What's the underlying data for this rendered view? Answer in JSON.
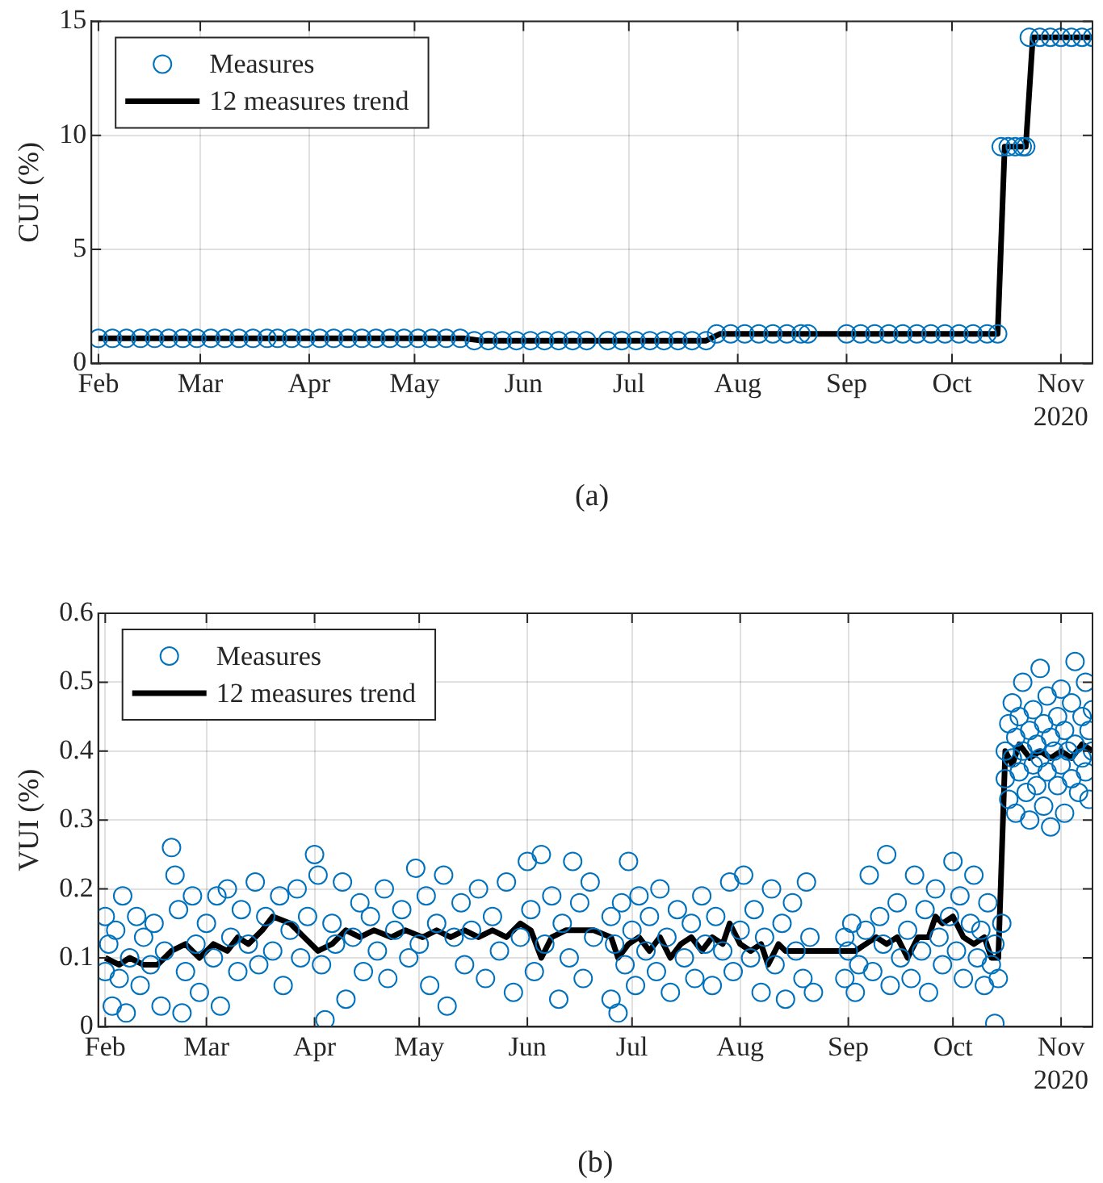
{
  "chart_data": [
    {
      "type": "scatter",
      "ylabel": "CUI (%)",
      "xlim": [
        "2020-01-30",
        "2020-11-10"
      ],
      "xticks": [
        {
          "value": "2020-02-01",
          "label": "Feb"
        },
        {
          "value": "2020-03-01",
          "label": "Mar"
        },
        {
          "value": "2020-04-01",
          "label": "Apr"
        },
        {
          "value": "2020-05-01",
          "label": "May"
        },
        {
          "value": "2020-06-01",
          "label": "Jun"
        },
        {
          "value": "2020-07-01",
          "label": "Jul"
        },
        {
          "value": "2020-08-01",
          "label": "Aug"
        },
        {
          "value": "2020-09-01",
          "label": "Sep"
        },
        {
          "value": "2020-10-01",
          "label": "Oct"
        },
        {
          "value": "2020-11-01",
          "label": "Nov\n2020"
        }
      ],
      "ylim": [
        0,
        15
      ],
      "yticks": [
        0,
        5,
        10,
        15
      ],
      "grid": true,
      "legend": "top left",
      "annotations": [
        "(a)"
      ],
      "series": [
        {
          "name": "Measures",
          "type": "scatter",
          "marker": "circle",
          "color": "#0072bd",
          "x": [
            "2020-02-01",
            "2020-02-05",
            "2020-02-09",
            "2020-02-13",
            "2020-02-17",
            "2020-02-21",
            "2020-02-25",
            "2020-02-29",
            "2020-03-04",
            "2020-03-08",
            "2020-03-12",
            "2020-03-16",
            "2020-03-20",
            "2020-03-23",
            "2020-03-27",
            "2020-03-31",
            "2020-04-04",
            "2020-04-08",
            "2020-04-12",
            "2020-04-16",
            "2020-04-20",
            "2020-04-24",
            "2020-04-28",
            "2020-05-02",
            "2020-05-06",
            "2020-05-10",
            "2020-05-14",
            "2020-05-18",
            "2020-05-22",
            "2020-05-26",
            "2020-05-30",
            "2020-06-03",
            "2020-06-07",
            "2020-06-11",
            "2020-06-15",
            "2020-06-19",
            "2020-06-25",
            "2020-06-29",
            "2020-07-03",
            "2020-07-07",
            "2020-07-11",
            "2020-07-15",
            "2020-07-19",
            "2020-07-23",
            "2020-07-26",
            "2020-07-30",
            "2020-08-03",
            "2020-08-07",
            "2020-08-11",
            "2020-08-15",
            "2020-08-19",
            "2020-08-21",
            "2020-09-01",
            "2020-09-05",
            "2020-09-09",
            "2020-09-13",
            "2020-09-17",
            "2020-09-21",
            "2020-09-25",
            "2020-09-29",
            "2020-10-03",
            "2020-10-07",
            "2020-10-11",
            "2020-10-14",
            "2020-10-15",
            "2020-10-17",
            "2020-10-19",
            "2020-10-21",
            "2020-10-22",
            "2020-10-23",
            "2020-10-26",
            "2020-10-29",
            "2020-11-01",
            "2020-11-04",
            "2020-11-07",
            "2020-11-10"
          ],
          "values": [
            1.1,
            1.1,
            1.1,
            1.1,
            1.1,
            1.1,
            1.1,
            1.1,
            1.1,
            1.1,
            1.1,
            1.1,
            1.1,
            1.1,
            1.1,
            1.1,
            1.1,
            1.1,
            1.1,
            1.1,
            1.1,
            1.1,
            1.1,
            1.1,
            1.1,
            1.1,
            1.1,
            1.0,
            1.0,
            1.0,
            1.0,
            1.0,
            1.0,
            1.0,
            1.0,
            1.0,
            1.0,
            1.0,
            1.0,
            1.0,
            1.0,
            1.0,
            1.0,
            1.0,
            1.3,
            1.3,
            1.3,
            1.3,
            1.3,
            1.3,
            1.3,
            1.3,
            1.3,
            1.3,
            1.3,
            1.3,
            1.3,
            1.3,
            1.3,
            1.3,
            1.3,
            1.3,
            1.3,
            1.3,
            9.5,
            9.5,
            9.5,
            9.5,
            9.5,
            14.3,
            14.3,
            14.3,
            14.3,
            14.3,
            14.3,
            14.3
          ]
        },
        {
          "name": "12 measures trend",
          "type": "line",
          "marker": "none",
          "color": "#000000",
          "x": [
            "2020-02-01",
            "2020-05-15",
            "2020-05-20",
            "2020-07-23",
            "2020-07-27",
            "2020-10-14",
            "2020-10-16",
            "2020-10-22",
            "2020-10-24",
            "2020-11-10"
          ],
          "values": [
            1.1,
            1.1,
            1.0,
            1.0,
            1.3,
            1.3,
            9.5,
            9.5,
            14.3,
            14.3
          ]
        }
      ]
    },
    {
      "type": "scatter",
      "ylabel": "VUI (%)",
      "xlim": [
        "2020-01-30",
        "2020-11-10"
      ],
      "xticks": [
        {
          "value": "2020-02-01",
          "label": "Feb"
        },
        {
          "value": "2020-03-01",
          "label": "Mar"
        },
        {
          "value": "2020-04-01",
          "label": "Apr"
        },
        {
          "value": "2020-05-01",
          "label": "May"
        },
        {
          "value": "2020-06-01",
          "label": "Jun"
        },
        {
          "value": "2020-07-01",
          "label": "Jul"
        },
        {
          "value": "2020-08-01",
          "label": "Aug"
        },
        {
          "value": "2020-09-01",
          "label": "Sep"
        },
        {
          "value": "2020-10-01",
          "label": "Oct"
        },
        {
          "value": "2020-11-01",
          "label": "Nov\n2020"
        }
      ],
      "ylim": [
        0,
        0.6
      ],
      "yticks": [
        0,
        0.1,
        0.2,
        0.3,
        0.4,
        0.5,
        0.6
      ],
      "grid": true,
      "legend": "top left",
      "annotations": [
        "(b)"
      ],
      "series": [
        {
          "name": "Measures",
          "type": "scatter",
          "marker": "circle",
          "color": "#0072bd",
          "x": [
            "2020-02-01",
            "2020-02-01",
            "2020-02-02",
            "2020-02-03",
            "2020-02-04",
            "2020-02-05",
            "2020-02-06",
            "2020-02-07",
            "2020-02-08",
            "2020-02-10",
            "2020-02-11",
            "2020-02-12",
            "2020-02-14",
            "2020-02-15",
            "2020-02-17",
            "2020-02-18",
            "2020-02-20",
            "2020-02-21",
            "2020-02-22",
            "2020-02-23",
            "2020-02-24",
            "2020-02-26",
            "2020-02-27",
            "2020-02-28",
            "2020-03-01",
            "2020-03-03",
            "2020-03-04",
            "2020-03-05",
            "2020-03-07",
            "2020-03-08",
            "2020-03-10",
            "2020-03-11",
            "2020-03-13",
            "2020-03-15",
            "2020-03-16",
            "2020-03-18",
            "2020-03-20",
            "2020-03-22",
            "2020-03-23",
            "2020-03-25",
            "2020-03-27",
            "2020-03-28",
            "2020-03-30",
            "2020-04-01",
            "2020-04-02",
            "2020-04-03",
            "2020-04-04",
            "2020-04-06",
            "2020-04-07",
            "2020-04-09",
            "2020-04-10",
            "2020-04-12",
            "2020-04-14",
            "2020-04-15",
            "2020-04-17",
            "2020-04-19",
            "2020-04-21",
            "2020-04-22",
            "2020-04-24",
            "2020-04-26",
            "2020-04-28",
            "2020-04-30",
            "2020-05-01",
            "2020-05-03",
            "2020-05-04",
            "2020-05-06",
            "2020-05-08",
            "2020-05-09",
            "2020-05-11",
            "2020-05-13",
            "2020-05-14",
            "2020-05-16",
            "2020-05-18",
            "2020-05-20",
            "2020-05-22",
            "2020-05-24",
            "2020-05-26",
            "2020-05-28",
            "2020-05-30",
            "2020-06-01",
            "2020-06-02",
            "2020-06-03",
            "2020-06-05",
            "2020-06-06",
            "2020-06-08",
            "2020-06-10",
            "2020-06-11",
            "2020-06-13",
            "2020-06-14",
            "2020-06-16",
            "2020-06-17",
            "2020-06-19",
            "2020-06-20",
            "2020-06-25",
            "2020-06-25",
            "2020-06-26",
            "2020-06-27",
            "2020-06-28",
            "2020-06-29",
            "2020-06-30",
            "2020-07-01",
            "2020-07-02",
            "2020-07-03",
            "2020-07-05",
            "2020-07-06",
            "2020-07-08",
            "2020-07-09",
            "2020-07-11",
            "2020-07-12",
            "2020-07-14",
            "2020-07-16",
            "2020-07-18",
            "2020-07-19",
            "2020-07-21",
            "2020-07-22",
            "2020-07-24",
            "2020-07-25",
            "2020-07-27",
            "2020-07-29",
            "2020-07-30",
            "2020-08-01",
            "2020-08-02",
            "2020-08-04",
            "2020-08-05",
            "2020-08-07",
            "2020-08-08",
            "2020-08-10",
            "2020-08-11",
            "2020-08-13",
            "2020-08-14",
            "2020-08-16",
            "2020-08-17",
            "2020-08-19",
            "2020-08-20",
            "2020-08-21",
            "2020-08-22",
            "2020-08-31",
            "2020-08-31",
            "2020-09-01",
            "2020-09-02",
            "2020-09-03",
            "2020-09-04",
            "2020-09-06",
            "2020-09-07",
            "2020-09-08",
            "2020-09-10",
            "2020-09-11",
            "2020-09-12",
            "2020-09-13",
            "2020-09-15",
            "2020-09-16",
            "2020-09-18",
            "2020-09-19",
            "2020-09-20",
            "2020-09-22",
            "2020-09-23",
            "2020-09-24",
            "2020-09-26",
            "2020-09-27",
            "2020-09-28",
            "2020-09-30",
            "2020-10-01",
            "2020-10-02",
            "2020-10-03",
            "2020-10-04",
            "2020-10-06",
            "2020-10-07",
            "2020-10-08",
            "2020-10-09",
            "2020-10-10",
            "2020-10-11",
            "2020-10-12",
            "2020-10-13",
            "2020-10-13",
            "2020-10-14",
            "2020-10-15",
            "2020-10-16",
            "2020-10-16",
            "2020-10-17",
            "2020-10-17",
            "2020-10-18",
            "2020-10-18",
            "2020-10-19",
            "2020-10-19",
            "2020-10-20",
            "2020-10-20",
            "2020-10-21",
            "2020-10-21",
            "2020-10-22",
            "2020-10-23",
            "2020-10-23",
            "2020-10-24",
            "2020-10-24",
            "2020-10-25",
            "2020-10-25",
            "2020-10-26",
            "2020-10-26",
            "2020-10-27",
            "2020-10-27",
            "2020-10-28",
            "2020-10-28",
            "2020-10-29",
            "2020-10-29",
            "2020-10-30",
            "2020-10-31",
            "2020-10-31",
            "2020-11-01",
            "2020-11-01",
            "2020-11-02",
            "2020-11-02",
            "2020-11-03",
            "2020-11-04",
            "2020-11-04",
            "2020-11-05",
            "2020-11-05",
            "2020-11-06",
            "2020-11-07",
            "2020-11-07",
            "2020-11-08",
            "2020-11-08",
            "2020-11-09",
            "2020-11-09",
            "2020-11-10",
            "2020-11-10"
          ],
          "values": [
            0.16,
            0.08,
            0.12,
            0.03,
            0.14,
            0.07,
            0.19,
            0.02,
            0.1,
            0.16,
            0.06,
            0.13,
            0.09,
            0.15,
            0.03,
            0.11,
            0.26,
            0.22,
            0.17,
            0.02,
            0.08,
            0.19,
            0.12,
            0.05,
            0.15,
            0.1,
            0.19,
            0.03,
            0.2,
            0.13,
            0.08,
            0.17,
            0.12,
            0.21,
            0.09,
            0.16,
            0.11,
            0.19,
            0.06,
            0.14,
            0.2,
            0.1,
            0.16,
            0.25,
            0.22,
            0.09,
            0.01,
            0.15,
            0.12,
            0.21,
            0.04,
            0.13,
            0.18,
            0.08,
            0.16,
            0.11,
            0.2,
            0.07,
            0.14,
            0.17,
            0.1,
            0.23,
            0.12,
            0.19,
            0.06,
            0.15,
            0.22,
            0.03,
            0.13,
            0.18,
            0.09,
            0.14,
            0.2,
            0.07,
            0.16,
            0.11,
            0.21,
            0.05,
            0.13,
            0.24,
            0.17,
            0.08,
            0.25,
            0.12,
            0.19,
            0.04,
            0.15,
            0.1,
            0.24,
            0.18,
            0.07,
            0.21,
            0.13,
            0.16,
            0.04,
            0.12,
            0.02,
            0.18,
            0.09,
            0.24,
            0.14,
            0.06,
            0.19,
            0.11,
            0.16,
            0.08,
            0.2,
            0.13,
            0.05,
            0.17,
            0.1,
            0.15,
            0.07,
            0.19,
            0.12,
            0.06,
            0.16,
            0.11,
            0.21,
            0.08,
            0.14,
            0.22,
            0.1,
            0.17,
            0.05,
            0.13,
            0.2,
            0.09,
            0.15,
            0.04,
            0.18,
            0.11,
            0.07,
            0.21,
            0.13,
            0.05,
            0.13,
            0.07,
            0.11,
            0.15,
            0.05,
            0.09,
            0.14,
            0.22,
            0.08,
            0.16,
            0.12,
            0.25,
            0.06,
            0.18,
            0.1,
            0.14,
            0.07,
            0.22,
            0.11,
            0.17,
            0.05,
            0.2,
            0.13,
            0.09,
            0.16,
            0.24,
            0.11,
            0.19,
            0.07,
            0.15,
            0.22,
            0.1,
            0.14,
            0.06,
            0.18,
            0.09,
            0.005,
            0.12,
            0.07,
            0.15,
            0.4,
            0.36,
            0.44,
            0.33,
            0.47,
            0.39,
            0.42,
            0.31,
            0.37,
            0.45,
            0.5,
            0.4,
            0.34,
            0.43,
            0.3,
            0.38,
            0.46,
            0.41,
            0.35,
            0.52,
            0.39,
            0.44,
            0.32,
            0.37,
            0.48,
            0.42,
            0.29,
            0.4,
            0.45,
            0.35,
            0.49,
            0.38,
            0.43,
            0.31,
            0.4,
            0.47,
            0.36,
            0.53,
            0.41,
            0.34,
            0.45,
            0.39,
            0.5,
            0.37,
            0.43,
            0.33,
            0.4,
            0.46
          ]
        },
        {
          "name": "12 measures trend",
          "type": "line",
          "marker": "none",
          "color": "#000000",
          "x": [
            "2020-02-01",
            "2020-02-05",
            "2020-02-08",
            "2020-02-12",
            "2020-02-16",
            "2020-02-20",
            "2020-02-24",
            "2020-02-28",
            "2020-03-03",
            "2020-03-07",
            "2020-03-10",
            "2020-03-13",
            "2020-03-17",
            "2020-03-20",
            "2020-03-25",
            "2020-03-29",
            "2020-04-02",
            "2020-04-06",
            "2020-04-10",
            "2020-04-14",
            "2020-04-18",
            "2020-04-23",
            "2020-04-27",
            "2020-05-02",
            "2020-05-06",
            "2020-05-10",
            "2020-05-14",
            "2020-05-18",
            "2020-05-22",
            "2020-05-26",
            "2020-05-30",
            "2020-06-02",
            "2020-06-05",
            "2020-06-08",
            "2020-06-12",
            "2020-06-20",
            "2020-06-25",
            "2020-06-27",
            "2020-06-30",
            "2020-07-03",
            "2020-07-06",
            "2020-07-09",
            "2020-07-12",
            "2020-07-15",
            "2020-07-18",
            "2020-07-21",
            "2020-07-24",
            "2020-07-27",
            "2020-07-29",
            "2020-08-01",
            "2020-08-04",
            "2020-08-07",
            "2020-08-09",
            "2020-08-12",
            "2020-08-14",
            "2020-08-31",
            "2020-09-03",
            "2020-09-06",
            "2020-09-09",
            "2020-09-12",
            "2020-09-15",
            "2020-09-18",
            "2020-09-21",
            "2020-09-24",
            "2020-09-26",
            "2020-09-28",
            "2020-10-01",
            "2020-10-04",
            "2020-10-07",
            "2020-10-10",
            "2020-10-12",
            "2020-10-14",
            "2020-10-16",
            "2020-10-18",
            "2020-10-20",
            "2020-10-23",
            "2020-10-26",
            "2020-10-29",
            "2020-11-01",
            "2020-11-04",
            "2020-11-07",
            "2020-11-10"
          ],
          "values": [
            0.1,
            0.09,
            0.1,
            0.09,
            0.09,
            0.11,
            0.12,
            0.1,
            0.12,
            0.11,
            0.13,
            0.12,
            0.14,
            0.16,
            0.15,
            0.13,
            0.11,
            0.12,
            0.14,
            0.13,
            0.14,
            0.13,
            0.14,
            0.13,
            0.14,
            0.13,
            0.14,
            0.13,
            0.14,
            0.13,
            0.15,
            0.14,
            0.1,
            0.13,
            0.14,
            0.14,
            0.13,
            0.1,
            0.12,
            0.13,
            0.11,
            0.13,
            0.1,
            0.12,
            0.13,
            0.11,
            0.13,
            0.12,
            0.15,
            0.12,
            0.11,
            0.12,
            0.09,
            0.12,
            0.11,
            0.11,
            0.11,
            0.12,
            0.13,
            0.12,
            0.13,
            0.1,
            0.13,
            0.13,
            0.16,
            0.15,
            0.16,
            0.13,
            0.12,
            0.13,
            0.1,
            0.1,
            0.4,
            0.38,
            0.41,
            0.39,
            0.4,
            0.39,
            0.4,
            0.39,
            0.41,
            0.4
          ]
        }
      ]
    }
  ]
}
